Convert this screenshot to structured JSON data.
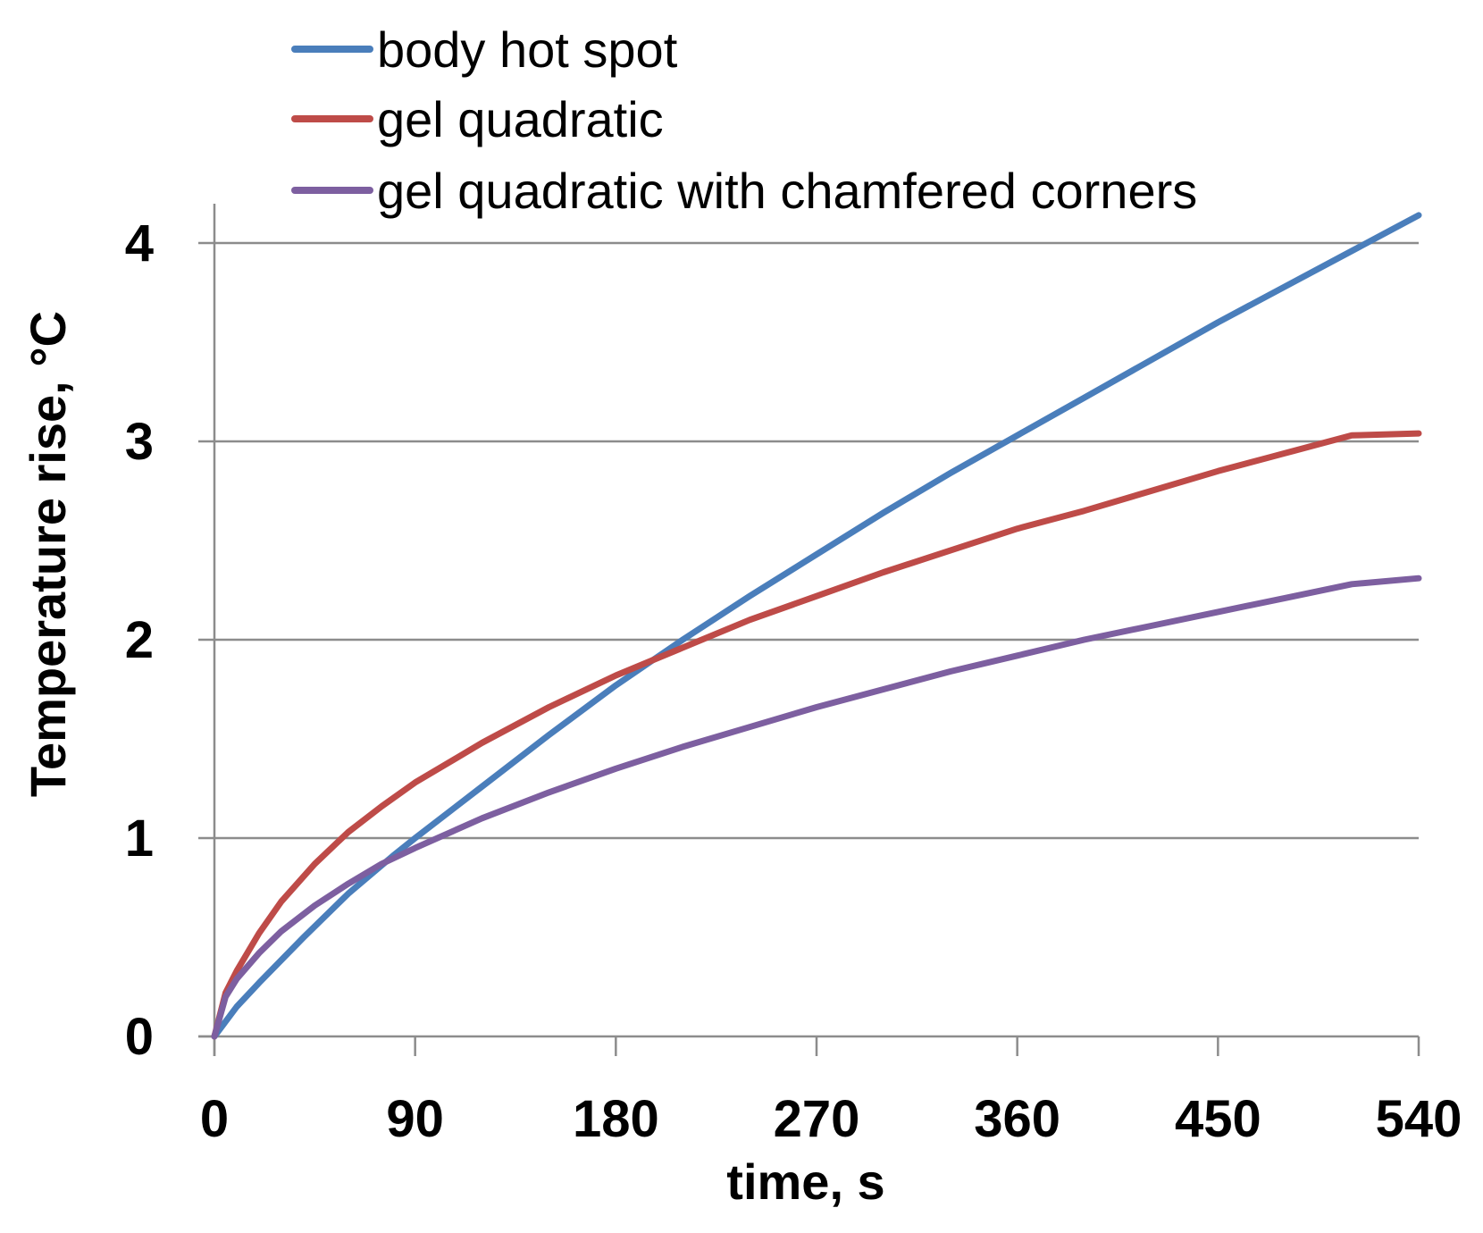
{
  "chart_data": {
    "type": "line",
    "title": "",
    "xlabel": "time, s",
    "ylabel": "Temperature rise, °C",
    "xlim": [
      0,
      540
    ],
    "ylim": [
      0,
      4.2
    ],
    "xticks": [
      0,
      90,
      180,
      270,
      360,
      450,
      540
    ],
    "yticks": [
      0,
      1,
      2,
      3,
      4
    ],
    "grid": "horizontal",
    "legend": "top",
    "series": [
      {
        "name": "body hot spot",
        "color": "#4A7EBB",
        "x": [
          0,
          10,
          20,
          40,
          60,
          80,
          90,
          120,
          150,
          180,
          210,
          240,
          270,
          300,
          330,
          360,
          390,
          420,
          450,
          480,
          510,
          540
        ],
        "y": [
          0,
          0.15,
          0.27,
          0.5,
          0.72,
          0.91,
          1.0,
          1.26,
          1.52,
          1.77,
          2.0,
          2.22,
          2.43,
          2.64,
          2.84,
          3.03,
          3.22,
          3.41,
          3.6,
          3.78,
          3.96,
          4.14
        ]
      },
      {
        "name": "gel quadratic",
        "color": "#BE4B48",
        "x": [
          0,
          5,
          10,
          20,
          30,
          45,
          60,
          75,
          90,
          120,
          150,
          180,
          210,
          240,
          270,
          300,
          330,
          360,
          390,
          420,
          450,
          480,
          510,
          540
        ],
        "y": [
          0,
          0.22,
          0.33,
          0.52,
          0.68,
          0.87,
          1.03,
          1.16,
          1.28,
          1.48,
          1.66,
          1.82,
          1.96,
          2.1,
          2.22,
          2.34,
          2.45,
          2.56,
          2.65,
          2.75,
          2.85,
          2.94,
          3.03,
          3.04
        ]
      },
      {
        "name": "gel quadratic with chamfered corners",
        "color": "#7D5FA0",
        "x": [
          0,
          5,
          10,
          20,
          30,
          45,
          60,
          75,
          90,
          120,
          150,
          180,
          210,
          240,
          270,
          300,
          330,
          360,
          390,
          420,
          450,
          480,
          510,
          540
        ],
        "y": [
          0,
          0.2,
          0.29,
          0.42,
          0.53,
          0.66,
          0.77,
          0.87,
          0.95,
          1.1,
          1.23,
          1.35,
          1.46,
          1.56,
          1.66,
          1.75,
          1.84,
          1.92,
          2.0,
          2.07,
          2.14,
          2.21,
          2.28,
          2.31
        ]
      }
    ]
  }
}
